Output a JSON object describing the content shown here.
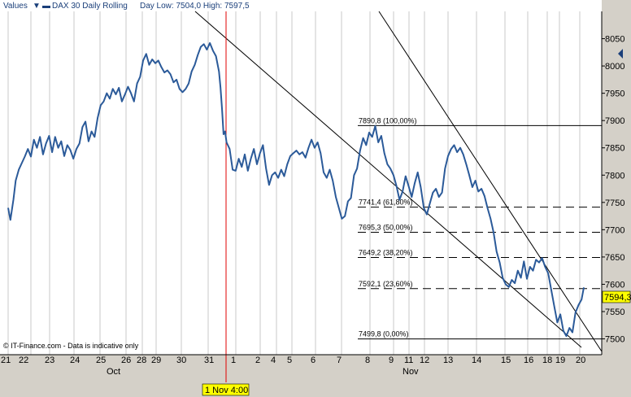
{
  "chart_data": {
    "type": "line",
    "legend": {
      "values_label": "Values",
      "series_label": "DAX 30 Daily Rolling",
      "range_label": "Day Low: 7504,0  High: 7597,5"
    },
    "y_axis": {
      "ylim": [
        7471,
        8100
      ],
      "ticks": [
        7500,
        7550,
        7600,
        7650,
        7700,
        7750,
        7800,
        7850,
        7900,
        7950,
        8000,
        8050
      ]
    },
    "x_axis": {
      "day_ticks": [
        "21",
        "22",
        "23",
        "24",
        "25",
        "26",
        "28",
        "29",
        "30",
        "31",
        "1",
        "2",
        "4",
        "5",
        "6",
        "7",
        "8",
        "9",
        "11",
        "12",
        "13",
        "14",
        "15",
        "16",
        "18",
        "19",
        "20"
      ],
      "month_labels": [
        "Oct",
        "Nov"
      ]
    },
    "highlight_label": "1 Nov 4:00",
    "last_price": {
      "value": 7594.3,
      "label": "7594,3"
    },
    "fibonacci_levels": [
      {
        "value": 7890.8,
        "label": "7890,8 (100,00%)",
        "style": "solid"
      },
      {
        "value": 7741.4,
        "label": "7741,4 (61,80%)",
        "style": "dashed"
      },
      {
        "value": 7695.3,
        "label": "7695,3 (50,00%)",
        "style": "dashed"
      },
      {
        "value": 7649.2,
        "label": "7649,2 (38,20%)",
        "style": "dashed"
      },
      {
        "value": 7592.1,
        "label": "7592,1 (23,60%)",
        "style": "dashed"
      },
      {
        "value": 7499.8,
        "label": "7499,8 (0,00%)",
        "style": "solid"
      }
    ],
    "series": [
      {
        "values": [
          [
            0,
            7740
          ],
          [
            0.3,
            7718
          ],
          [
            0.7,
            7755
          ],
          [
            1.0,
            7790
          ],
          [
            1.4,
            7810
          ],
          [
            1.8,
            7822
          ],
          [
            2.2,
            7834
          ],
          [
            2.6,
            7848
          ],
          [
            3.0,
            7834
          ],
          [
            3.4,
            7865
          ],
          [
            3.8,
            7850
          ],
          [
            4.2,
            7870
          ],
          [
            4.6,
            7838
          ],
          [
            5.0,
            7858
          ],
          [
            5.4,
            7872
          ],
          [
            5.8,
            7842
          ],
          [
            6.2,
            7870
          ],
          [
            6.6,
            7850
          ],
          [
            7.0,
            7862
          ],
          [
            7.4,
            7835
          ],
          [
            7.8,
            7855
          ],
          [
            8.2,
            7846
          ],
          [
            8.6,
            7830
          ],
          [
            9.0,
            7848
          ],
          [
            9.4,
            7858
          ],
          [
            9.8,
            7888
          ],
          [
            10.2,
            7898
          ],
          [
            10.6,
            7862
          ],
          [
            11.0,
            7880
          ],
          [
            11.4,
            7870
          ],
          [
            11.8,
            7905
          ],
          [
            12.2,
            7928
          ],
          [
            12.6,
            7935
          ],
          [
            13.0,
            7950
          ],
          [
            13.4,
            7940
          ],
          [
            13.8,
            7958
          ],
          [
            14.2,
            7948
          ],
          [
            14.6,
            7960
          ],
          [
            15.0,
            7935
          ],
          [
            15.4,
            7948
          ],
          [
            15.8,
            7962
          ],
          [
            16.2,
            7950
          ],
          [
            16.6,
            7935
          ],
          [
            17.0,
            7968
          ],
          [
            17.4,
            7980
          ],
          [
            17.8,
            8010
          ],
          [
            18.2,
            8022
          ],
          [
            18.6,
            8002
          ],
          [
            19.0,
            8012
          ],
          [
            19.4,
            8005
          ],
          [
            19.8,
            8010
          ],
          [
            20.2,
            7998
          ],
          [
            20.6,
            7988
          ],
          [
            21.0,
            7992
          ],
          [
            21.4,
            7985
          ],
          [
            21.8,
            7970
          ],
          [
            22.2,
            7975
          ],
          [
            22.6,
            7958
          ],
          [
            23.0,
            7952
          ],
          [
            23.4,
            7958
          ],
          [
            23.8,
            7968
          ],
          [
            24.2,
            7990
          ],
          [
            24.6,
            8002
          ],
          [
            25.0,
            8020
          ],
          [
            25.4,
            8035
          ],
          [
            25.8,
            8040
          ],
          [
            26.2,
            8030
          ],
          [
            26.6,
            8042
          ],
          [
            27.0,
            8028
          ],
          [
            27.4,
            8018
          ],
          [
            27.8,
            7990
          ],
          [
            28.0,
            7960
          ],
          [
            28.2,
            7920
          ],
          [
            28.4,
            7875
          ],
          [
            28.6,
            7880
          ],
          [
            28.8,
            7860
          ],
          [
            29.2,
            7848
          ],
          [
            29.6,
            7810
          ],
          [
            30.0,
            7808
          ],
          [
            30.4,
            7830
          ],
          [
            30.8,
            7815
          ],
          [
            31.2,
            7838
          ],
          [
            31.6,
            7808
          ],
          [
            32.0,
            7830
          ],
          [
            32.4,
            7848
          ],
          [
            32.8,
            7820
          ],
          [
            33.2,
            7840
          ],
          [
            33.6,
            7855
          ],
          [
            34.0,
            7812
          ],
          [
            34.4,
            7782
          ],
          [
            34.8,
            7800
          ],
          [
            35.2,
            7805
          ],
          [
            35.6,
            7795
          ],
          [
            36.0,
            7810
          ],
          [
            36.4,
            7798
          ],
          [
            36.8,
            7820
          ],
          [
            37.2,
            7835
          ],
          [
            37.6,
            7840
          ],
          [
            38.0,
            7845
          ],
          [
            38.4,
            7838
          ],
          [
            38.8,
            7842
          ],
          [
            39.2,
            7832
          ],
          [
            39.6,
            7850
          ],
          [
            40.0,
            7865
          ],
          [
            40.4,
            7850
          ],
          [
            40.8,
            7860
          ],
          [
            41.2,
            7840
          ],
          [
            41.6,
            7805
          ],
          [
            42.0,
            7795
          ],
          [
            42.4,
            7810
          ],
          [
            42.8,
            7790
          ],
          [
            43.2,
            7760
          ],
          [
            43.6,
            7740
          ],
          [
            44.0,
            7720
          ],
          [
            44.4,
            7725
          ],
          [
            44.8,
            7752
          ],
          [
            45.2,
            7758
          ],
          [
            45.6,
            7800
          ],
          [
            46.0,
            7812
          ],
          [
            46.4,
            7845
          ],
          [
            46.8,
            7868
          ],
          [
            47.2,
            7855
          ],
          [
            47.6,
            7878
          ],
          [
            48.0,
            7870
          ],
          [
            48.4,
            7890
          ],
          [
            48.8,
            7860
          ],
          [
            49.2,
            7872
          ],
          [
            49.6,
            7840
          ],
          [
            50.0,
            7820
          ],
          [
            50.4,
            7812
          ],
          [
            50.8,
            7800
          ],
          [
            51.2,
            7780
          ],
          [
            51.6,
            7755
          ],
          [
            52.0,
            7770
          ],
          [
            52.4,
            7798
          ],
          [
            52.8,
            7780
          ],
          [
            53.2,
            7760
          ],
          [
            53.6,
            7785
          ],
          [
            54.0,
            7805
          ],
          [
            54.4,
            7778
          ],
          [
            54.8,
            7740
          ],
          [
            55.2,
            7728
          ],
          [
            55.6,
            7748
          ],
          [
            56.0,
            7768
          ],
          [
            56.4,
            7775
          ],
          [
            56.8,
            7760
          ],
          [
            57.2,
            7768
          ],
          [
            57.6,
            7812
          ],
          [
            58.0,
            7835
          ],
          [
            58.4,
            7848
          ],
          [
            58.8,
            7855
          ],
          [
            59.2,
            7842
          ],
          [
            59.6,
            7850
          ],
          [
            60.0,
            7838
          ],
          [
            60.4,
            7820
          ],
          [
            60.8,
            7800
          ],
          [
            61.2,
            7778
          ],
          [
            61.6,
            7790
          ],
          [
            62.0,
            7770
          ],
          [
            62.4,
            7775
          ],
          [
            62.8,
            7762
          ],
          [
            63.2,
            7740
          ],
          [
            63.6,
            7720
          ],
          [
            64.0,
            7695
          ],
          [
            64.4,
            7660
          ],
          [
            64.8,
            7640
          ],
          [
            65.2,
            7612
          ],
          [
            65.6,
            7600
          ],
          [
            66.0,
            7595
          ],
          [
            66.4,
            7608
          ],
          [
            66.8,
            7602
          ],
          [
            67.2,
            7625
          ],
          [
            67.6,
            7612
          ],
          [
            68.0,
            7642
          ],
          [
            68.4,
            7610
          ],
          [
            68.8,
            7632
          ],
          [
            69.2,
            7625
          ],
          [
            69.6,
            7645
          ],
          [
            70.0,
            7640
          ],
          [
            70.4,
            7648
          ],
          [
            70.8,
            7632
          ],
          [
            71.2,
            7620
          ],
          [
            71.6,
            7590
          ],
          [
            72.0,
            7560
          ],
          [
            72.4,
            7530
          ],
          [
            72.8,
            7545
          ],
          [
            73.2,
            7515
          ],
          [
            73.6,
            7505
          ],
          [
            74.0,
            7520
          ],
          [
            74.4,
            7512
          ],
          [
            74.8,
            7548
          ],
          [
            75.2,
            7562
          ],
          [
            75.6,
            7572
          ],
          [
            75.9,
            7594.3
          ]
        ]
      }
    ]
  }
}
